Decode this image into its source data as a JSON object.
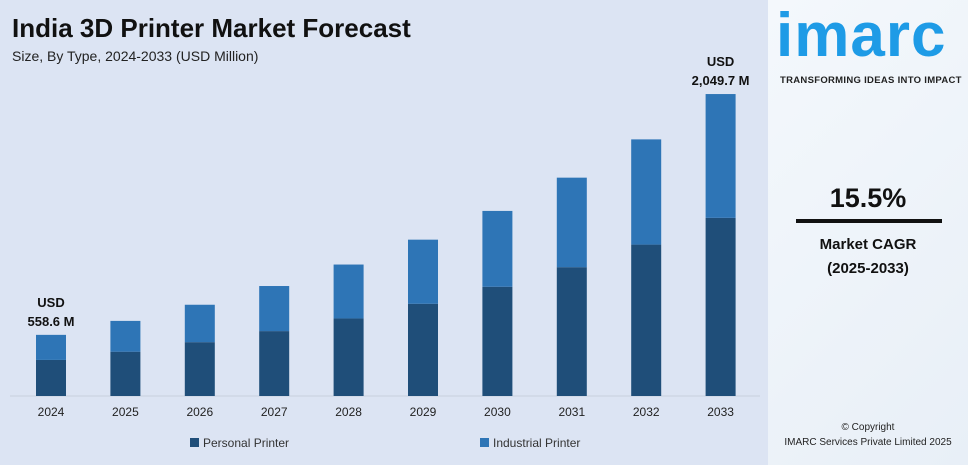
{
  "chart_data": {
    "type": "bar",
    "stacked": true,
    "title": "India 3D Printer Market Forecast",
    "subtitle": "Size, By Type, 2024-2033 (USD Million)",
    "categories": [
      "2024",
      "2025",
      "2026",
      "2027",
      "2028",
      "2029",
      "2030",
      "2031",
      "2032",
      "2033"
    ],
    "totals": [
      558.6,
      645,
      745,
      861,
      994,
      1148,
      1326,
      1532,
      1769,
      2049.7
    ],
    "series": [
      {
        "name": "Personal Printer",
        "color": "#1f4e79",
        "share": [
          0.59,
          0.59,
          0.59,
          0.59,
          0.59,
          0.59,
          0.59,
          0.59,
          0.59,
          0.59
        ]
      },
      {
        "name": "Industrial Printer",
        "color": "#2e75b6",
        "share": [
          0.41,
          0.41,
          0.41,
          0.41,
          0.41,
          0.41,
          0.41,
          0.41,
          0.41,
          0.41
        ]
      }
    ],
    "annotations": [
      {
        "category": "2024",
        "line1": "USD",
        "line2": "558.6 M"
      },
      {
        "category": "2033",
        "line1": "USD",
        "line2": "2,049.7 M"
      }
    ],
    "ylim": [
      180,
      2050
    ],
    "grid": false,
    "legend": "bottom"
  },
  "brand": {
    "logo": "imarc",
    "tagline": "TRANSFORMING IDEAS INTO IMPACT"
  },
  "cagr": {
    "value": "15.5%",
    "label": "Market CAGR",
    "period": "(2025-2033)"
  },
  "copyright": {
    "line1": "© Copyright",
    "line2": "IMARC Services Private Limited 2025"
  }
}
